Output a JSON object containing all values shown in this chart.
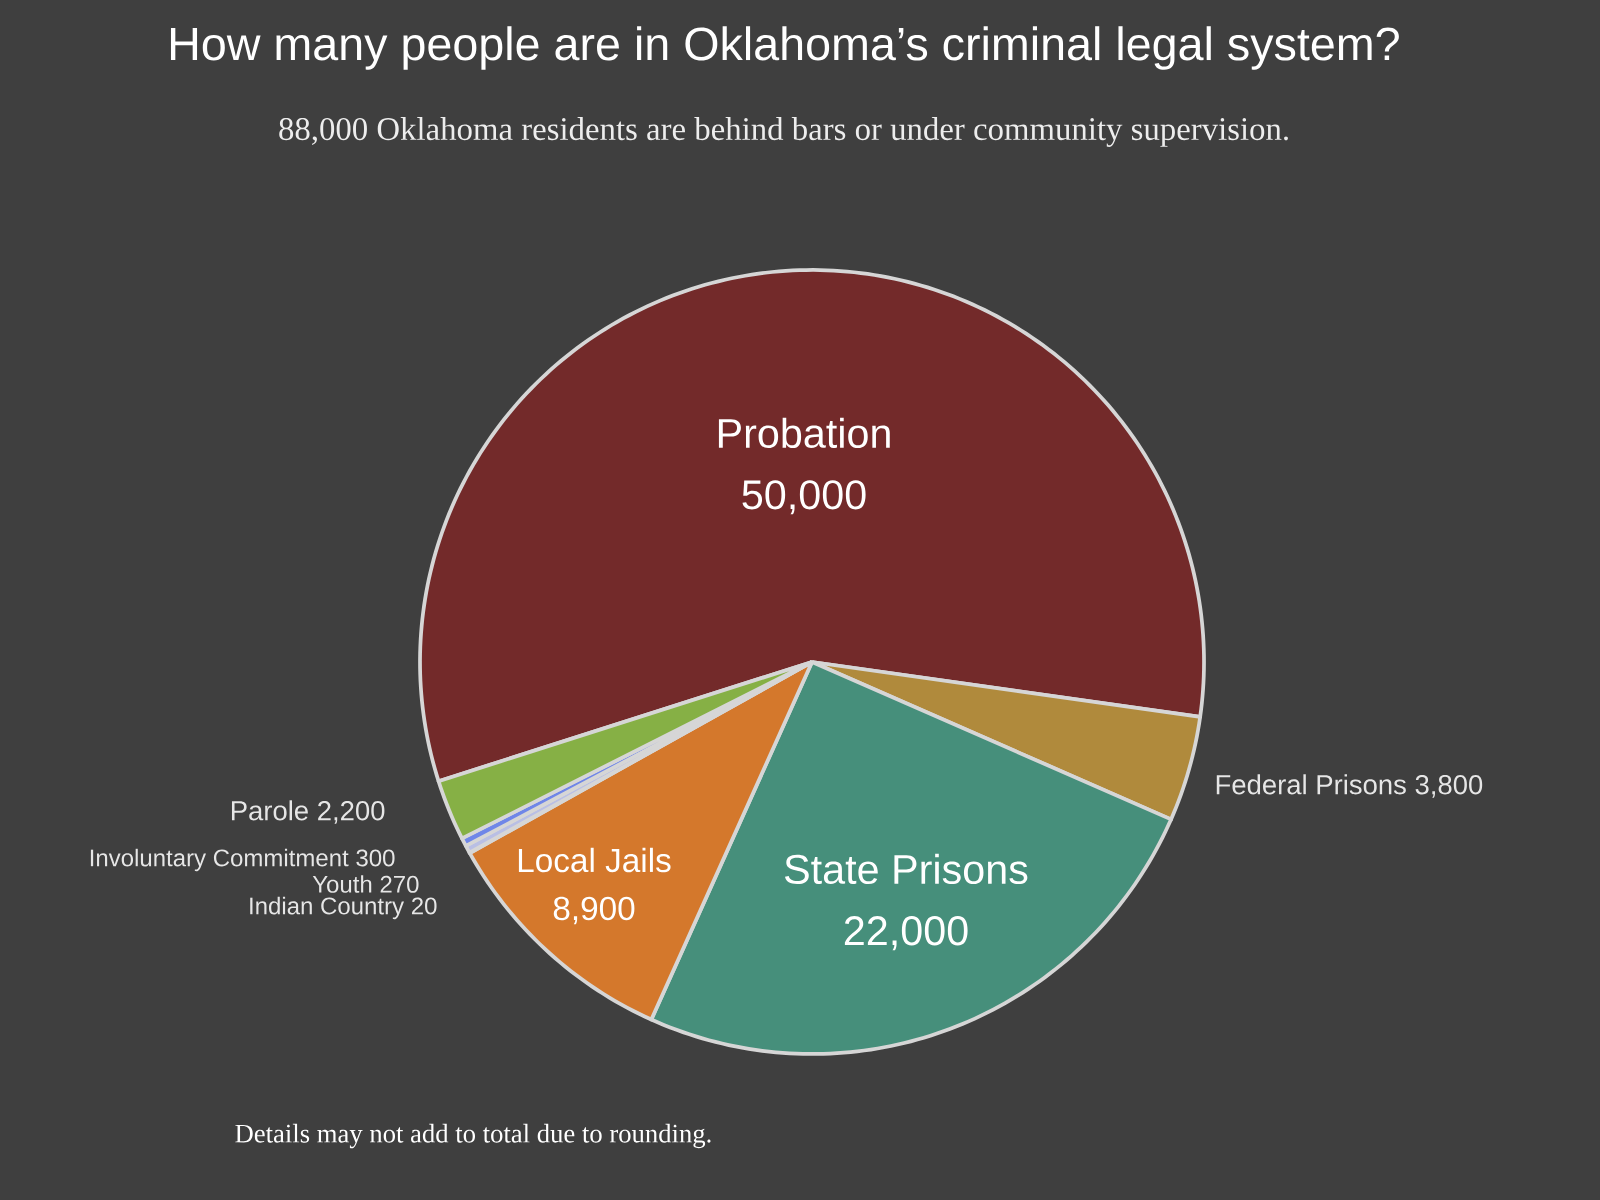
{
  "chart_data": {
    "type": "pie",
    "title": "How many people are in Oklahoma’s criminal legal system?",
    "subtitle": "88,000 Oklahoma residents are behind bars or under community supervision.",
    "categories": [
      "Probation",
      "Federal Prisons",
      "State Prisons",
      "Local Jails",
      "Indian Country",
      "Youth",
      "Involuntary Commitment",
      "Parole"
    ],
    "values": [
      50000,
      3800,
      22000,
      8900,
      20,
      270,
      300,
      2200
    ],
    "colors": [
      "#732a2a",
      "#b08a3c",
      "#468f7b",
      "#d4782c",
      "#c9cde6",
      "#b9bfe4",
      "#6f86e8",
      "#86b045"
    ],
    "value_labels": [
      "50,000",
      "3,800",
      "22,000",
      "8,900",
      "20",
      "270",
      "300",
      "2,200"
    ],
    "annotations": [
      "Details may not add to total due to rounding."
    ]
  }
}
